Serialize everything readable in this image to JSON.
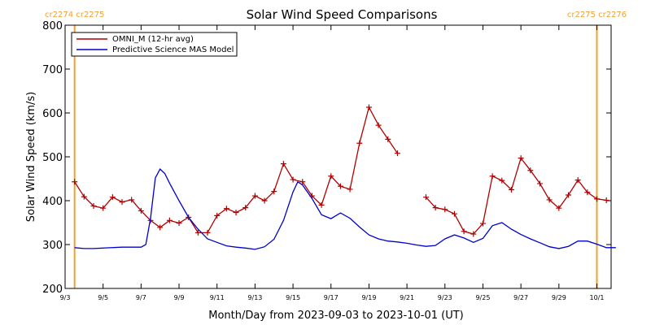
{
  "chart_data": {
    "type": "line",
    "title": "Solar Wind Speed Comparisons",
    "xlabel": "Month/Day from 2023-09-03 to 2023-10-01 (UT)",
    "ylabel": "Solar Wind Speed (km/s)",
    "ylim": [
      200,
      800
    ],
    "yticks": [
      200,
      300,
      400,
      500,
      600,
      700,
      800
    ],
    "xlim": [
      "2023-09-03",
      "2023-10-01T18:00"
    ],
    "xticks": [
      {
        "date": "2023-09-03",
        "label": "9/3"
      },
      {
        "date": "2023-09-05",
        "label": "9/5"
      },
      {
        "date": "2023-09-07",
        "label": "9/7"
      },
      {
        "date": "2023-09-09",
        "label": "9/9"
      },
      {
        "date": "2023-09-11",
        "label": "9/11"
      },
      {
        "date": "2023-09-13",
        "label": "9/13"
      },
      {
        "date": "2023-09-15",
        "label": "9/15"
      },
      {
        "date": "2023-09-17",
        "label": "9/17"
      },
      {
        "date": "2023-09-19",
        "label": "9/19"
      },
      {
        "date": "2023-09-21",
        "label": "9/21"
      },
      {
        "date": "2023-09-23",
        "label": "9/23"
      },
      {
        "date": "2023-09-25",
        "label": "9/25"
      },
      {
        "date": "2023-09-27",
        "label": "9/27"
      },
      {
        "date": "2023-09-29",
        "label": "9/29"
      },
      {
        "date": "2023-10-01",
        "label": "10/1"
      }
    ],
    "carrington_markers": [
      {
        "date": "2023-09-03T12:00",
        "labels": [
          "cr2274",
          "cr2275"
        ],
        "side": "left"
      },
      {
        "date": "2023-10-01T00:00",
        "labels": [
          "cr2275",
          "cr2276"
        ],
        "side": "right"
      }
    ],
    "legend_position": "top-left",
    "grid": false,
    "series": [
      {
        "name": "OMNI_M (12-hr avg)",
        "color": "#b00000",
        "marker": "+",
        "points": [
          [
            "2023-09-03T12:00",
            443
          ],
          [
            "2023-09-04T00:00",
            409
          ],
          [
            "2023-09-04T12:00",
            388
          ],
          [
            "2023-09-05T00:00",
            383
          ],
          [
            "2023-09-05T12:00",
            408
          ],
          [
            "2023-09-06T00:00",
            397
          ],
          [
            "2023-09-06T12:00",
            402
          ],
          [
            "2023-09-07T00:00",
            377
          ],
          [
            "2023-09-07T12:00",
            355
          ],
          [
            "2023-09-08T00:00",
            339
          ],
          [
            "2023-09-08T12:00",
            355
          ],
          [
            "2023-09-09T00:00",
            349
          ],
          [
            "2023-09-09T12:00",
            362
          ],
          [
            "2023-09-10T00:00",
            327
          ],
          [
            "2023-09-10T12:00",
            327
          ],
          [
            "2023-09-11T00:00",
            366
          ],
          [
            "2023-09-11T12:00",
            382
          ],
          [
            "2023-09-12T00:00",
            373
          ],
          [
            "2023-09-12T12:00",
            384
          ],
          [
            "2023-09-13T00:00",
            411
          ],
          [
            "2023-09-13T12:00",
            400
          ],
          [
            "2023-09-14T00:00",
            421
          ],
          [
            "2023-09-14T12:00",
            484
          ],
          [
            "2023-09-15T00:00",
            448
          ],
          [
            "2023-09-15T12:00",
            443
          ],
          [
            "2023-09-16T00:00",
            411
          ],
          [
            "2023-09-16T12:00",
            390
          ],
          [
            "2023-09-17T00:00",
            456
          ],
          [
            "2023-09-17T12:00",
            433
          ],
          [
            "2023-09-18T00:00",
            426
          ],
          [
            "2023-09-18T12:00",
            531
          ],
          [
            "2023-09-19T00:00",
            613
          ],
          [
            "2023-09-19T12:00",
            572
          ],
          [
            "2023-09-20T00:00",
            540
          ],
          [
            "2023-09-20T12:00",
            508
          ],
          null,
          [
            "2023-09-22T00:00",
            408
          ],
          [
            "2023-09-22T12:00",
            384
          ],
          [
            "2023-09-23T00:00",
            380
          ],
          [
            "2023-09-23T12:00",
            370
          ],
          [
            "2023-09-24T00:00",
            330
          ],
          [
            "2023-09-24T12:00",
            324
          ],
          [
            "2023-09-25T00:00",
            348
          ],
          [
            "2023-09-25T12:00",
            456
          ],
          [
            "2023-09-26T00:00",
            446
          ],
          [
            "2023-09-26T12:00",
            425
          ],
          [
            "2023-09-27T00:00",
            497
          ],
          [
            "2023-09-27T12:00",
            469
          ],
          [
            "2023-09-28T00:00",
            439
          ],
          [
            "2023-09-28T12:00",
            402
          ],
          [
            "2023-09-29T00:00",
            383
          ],
          [
            "2023-09-29T12:00",
            413
          ],
          [
            "2023-09-30T00:00",
            447
          ],
          [
            "2023-09-30T12:00",
            419
          ],
          [
            "2023-10-01T00:00",
            404
          ],
          [
            "2023-10-01T12:00",
            401
          ]
        ]
      },
      {
        "name": "Predictive Science MAS Model",
        "color": "#0000cc",
        "marker": "",
        "points": [
          [
            "2023-09-03T12:00",
            293
          ],
          [
            "2023-09-04T00:00",
            291
          ],
          [
            "2023-09-04T12:00",
            291
          ],
          [
            "2023-09-05T00:00",
            292
          ],
          [
            "2023-09-06T00:00",
            294
          ],
          [
            "2023-09-06T12:00",
            294
          ],
          [
            "2023-09-07T00:00",
            294
          ],
          [
            "2023-09-07T06:00",
            300
          ],
          [
            "2023-09-07T12:00",
            360
          ],
          [
            "2023-09-07T18:00",
            452
          ],
          [
            "2023-09-08T00:00",
            472
          ],
          [
            "2023-09-08T06:00",
            462
          ],
          [
            "2023-09-08T12:00",
            440
          ],
          [
            "2023-09-09T00:00",
            400
          ],
          [
            "2023-09-09T12:00",
            362
          ],
          [
            "2023-09-10T00:00",
            335
          ],
          [
            "2023-09-10T12:00",
            313
          ],
          [
            "2023-09-11T00:00",
            305
          ],
          [
            "2023-09-11T12:00",
            297
          ],
          [
            "2023-09-12T00:00",
            294
          ],
          [
            "2023-09-12T12:00",
            292
          ],
          [
            "2023-09-13T00:00",
            289
          ],
          [
            "2023-09-13T12:00",
            295
          ],
          [
            "2023-09-14T00:00",
            312
          ],
          [
            "2023-09-14T12:00",
            355
          ],
          [
            "2023-09-15T00:00",
            420
          ],
          [
            "2023-09-15T06:00",
            443
          ],
          [
            "2023-09-15T12:00",
            436
          ],
          [
            "2023-09-16T00:00",
            405
          ],
          [
            "2023-09-16T12:00",
            368
          ],
          [
            "2023-09-17T00:00",
            359
          ],
          [
            "2023-09-17T12:00",
            372
          ],
          [
            "2023-09-18T00:00",
            360
          ],
          [
            "2023-09-18T12:00",
            340
          ],
          [
            "2023-09-19T00:00",
            322
          ],
          [
            "2023-09-19T12:00",
            313
          ],
          [
            "2023-09-20T00:00",
            308
          ],
          [
            "2023-09-20T12:00",
            306
          ],
          [
            "2023-09-21T00:00",
            303
          ],
          [
            "2023-09-21T12:00",
            299
          ],
          [
            "2023-09-22T00:00",
            296
          ],
          [
            "2023-09-22T12:00",
            298
          ],
          [
            "2023-09-23T00:00",
            313
          ],
          [
            "2023-09-23T12:00",
            322
          ],
          [
            "2023-09-24T00:00",
            315
          ],
          [
            "2023-09-24T12:00",
            305
          ],
          [
            "2023-09-25T00:00",
            314
          ],
          [
            "2023-09-25T12:00",
            343
          ],
          [
            "2023-09-26T00:00",
            350
          ],
          [
            "2023-09-26T12:00",
            335
          ],
          [
            "2023-09-27T00:00",
            323
          ],
          [
            "2023-09-27T12:00",
            313
          ],
          [
            "2023-09-28T00:00",
            304
          ],
          [
            "2023-09-28T12:00",
            295
          ],
          [
            "2023-09-29T00:00",
            291
          ],
          [
            "2023-09-29T12:00",
            296
          ],
          [
            "2023-09-30T00:00",
            308
          ],
          [
            "2023-09-30T12:00",
            308
          ],
          [
            "2023-10-01T00:00",
            301
          ],
          [
            "2023-10-01T12:00",
            293
          ],
          [
            "2023-10-02T00:00",
            293
          ]
        ]
      }
    ]
  }
}
